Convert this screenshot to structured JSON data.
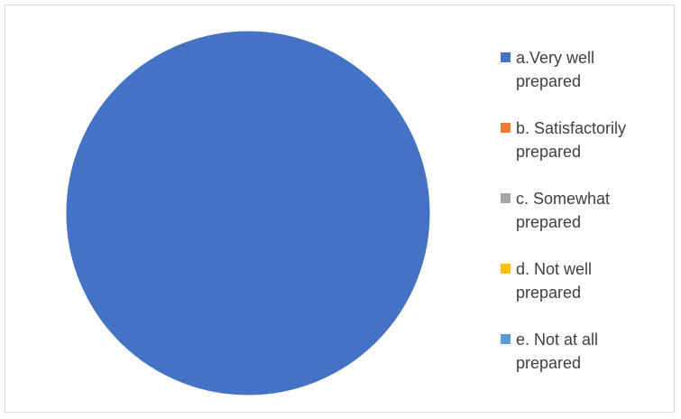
{
  "chart_data": {
    "type": "pie",
    "title": "",
    "categories": [
      "a.Very well prepared",
      "b. Satisfactorily prepared",
      "c. Somewhat prepared",
      "d. Not well prepared",
      "e. Not at all prepared"
    ],
    "values": [
      100,
      0,
      0,
      0,
      0
    ],
    "colors": [
      "#4472C4",
      "#ED7D31",
      "#A5A5A5",
      "#FFC000",
      "#5B9BD5"
    ],
    "legend_position": "right",
    "legend": [
      {
        "line1": "a.Very well",
        "line2": "prepared"
      },
      {
        "line1": "b. Satisfactorily",
        "line2": "prepared"
      },
      {
        "line1": "c. Somewhat",
        "line2": "prepared"
      },
      {
        "line1": "d. Not well",
        "line2": "prepared"
      },
      {
        "line1": "e. Not at all",
        "line2": "prepared"
      }
    ]
  }
}
